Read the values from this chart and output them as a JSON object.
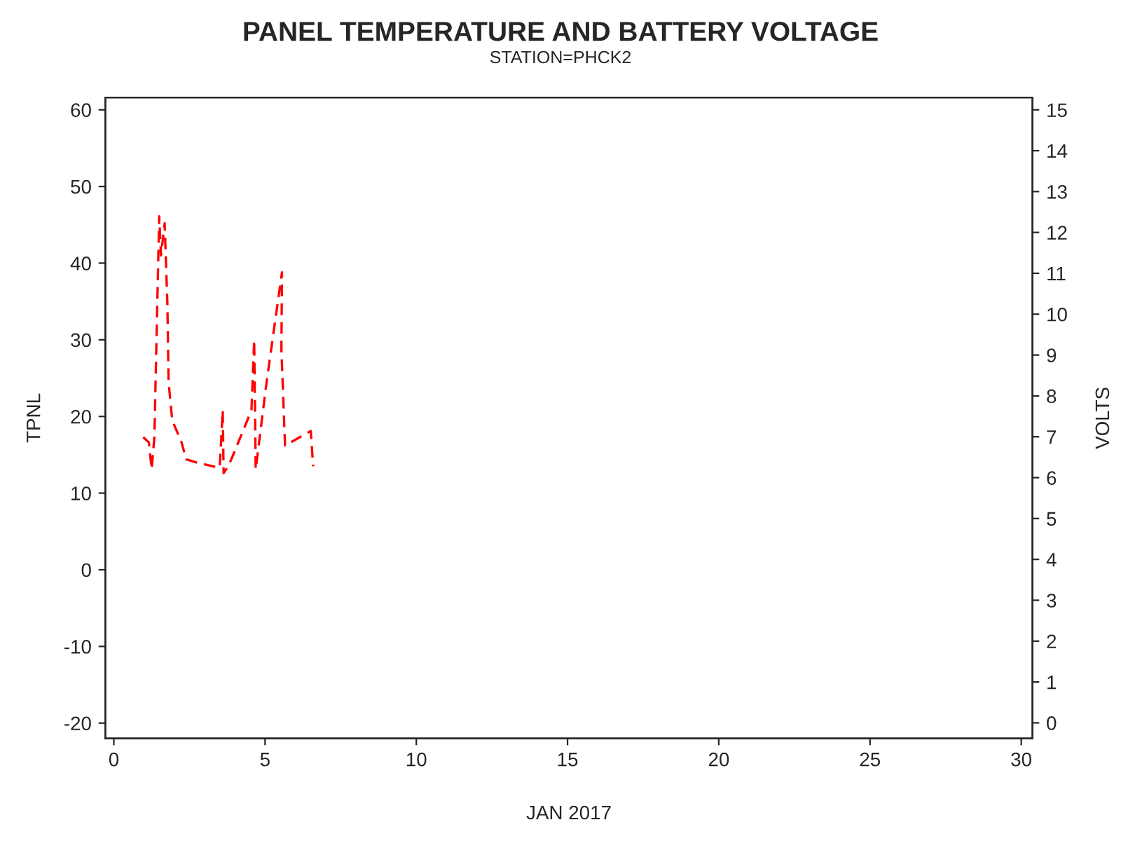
{
  "chart_data": {
    "type": "line",
    "title": "PANEL TEMPERATURE AND BATTERY VOLTAGE",
    "subtitle": "STATION=PHCK2",
    "xlabel": "JAN 2017",
    "ylabel": "TPNL",
    "y2label": "VOLTS",
    "series": [
      {
        "color": "#ff0000",
        "line_style": "dashed",
        "x": [
          0.97,
          1.16,
          1.25,
          1.34,
          1.5,
          1.56,
          1.68,
          1.77,
          1.81,
          1.93,
          2.24,
          2.39,
          2.73,
          3.5,
          3.6,
          3.63,
          3.81,
          4.55,
          4.64,
          4.69,
          5.05,
          5.56,
          5.54,
          5.66,
          6.51,
          6.59
        ],
        "values": [
          17.3,
          16.6,
          13.1,
          17.3,
          46.1,
          41,
          45.2,
          34.7,
          24.5,
          19.5,
          16.6,
          14.4,
          14.0,
          13.3,
          20.8,
          12.6,
          13.7,
          20.8,
          30.0,
          13.1,
          24.5,
          38.8,
          28.7,
          16.2,
          18.1,
          13.5
        ]
      }
    ],
    "xlim": [
      -0.28,
      30.37
    ],
    "xticks": [
      0,
      5,
      10,
      15,
      20,
      25,
      30
    ],
    "ylim": [
      -22,
      61.6
    ],
    "yticks": [
      -20,
      -10,
      0,
      10,
      20,
      30,
      40,
      50,
      60
    ],
    "y2lim": [
      -0.38,
      15.3
    ],
    "y2ticks": [
      0,
      1,
      2,
      3,
      4,
      5,
      6,
      7,
      8,
      9,
      10,
      11,
      12,
      13,
      14,
      15
    ],
    "grid": false,
    "legend": false
  }
}
